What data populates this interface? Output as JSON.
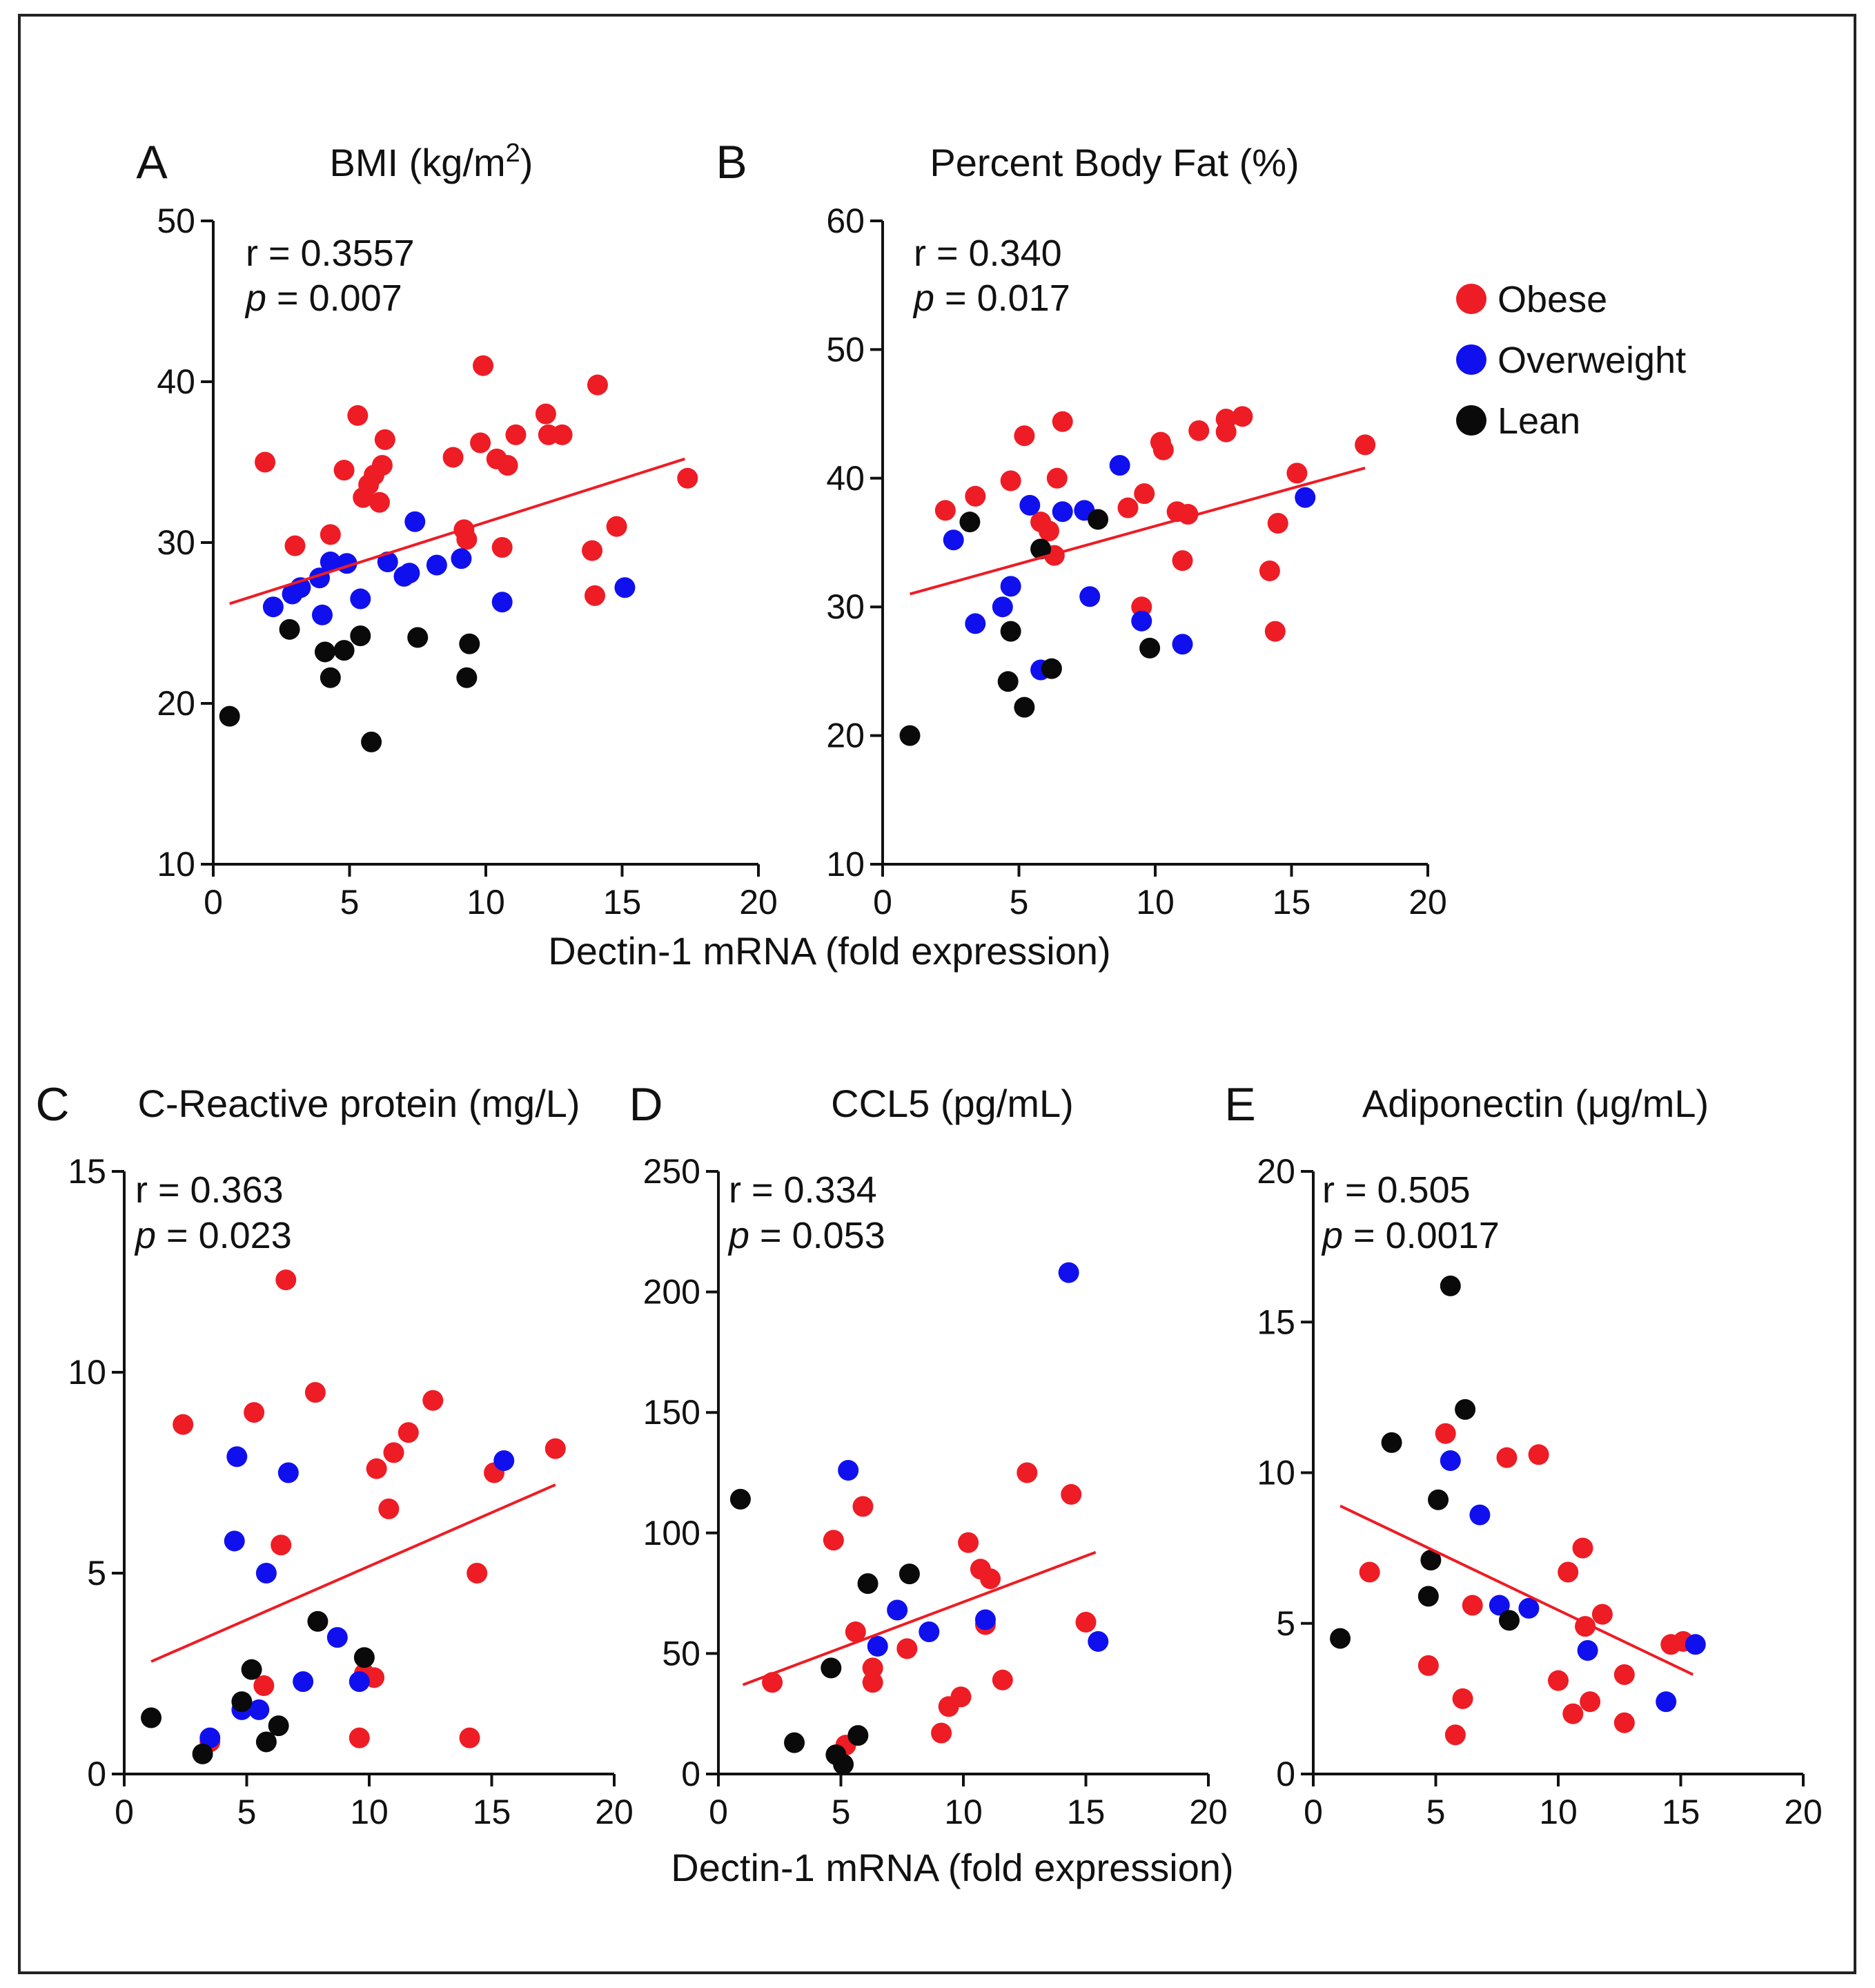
{
  "colors": {
    "Obese": "#ee1c24",
    "Overweight": "#1010ee",
    "Lean": "#0a0a0a",
    "fit": "#ee1c24",
    "axis": "#111111"
  },
  "legend": [
    {
      "name": "Obese",
      "label": "Obese"
    },
    {
      "name": "Overweight",
      "label": "Overweight"
    },
    {
      "name": "Lean",
      "label": "Lean"
    }
  ],
  "shared_xlabel_top": "Dectin-1 mRNA (fold expression)",
  "shared_xlabel_bottom": "Dectin-1 mRNA (fold expression)",
  "chart_data": [
    {
      "id": "A",
      "type": "scatter",
      "letter": "A",
      "title": "BMI (kg/m",
      "title_sup": "2",
      "title_tail": ")",
      "r_text": "r = 0.3557",
      "p_label": "p",
      "p_text": " = 0.007",
      "xlim": [
        0,
        20
      ],
      "ylim": [
        10,
        50
      ],
      "xticks": [
        0,
        5,
        10,
        15,
        20
      ],
      "yticks": [
        10,
        20,
        30,
        40,
        50
      ],
      "fit": [
        [
          0.6,
          26.2
        ],
        [
          17.3,
          35.2
        ]
      ],
      "series": [
        {
          "name": "Obese",
          "points": [
            [
              1.9,
              35
            ],
            [
              3,
              29.8
            ],
            [
              4.3,
              30.5
            ],
            [
              4.8,
              34.5
            ],
            [
              5.3,
              37.9
            ],
            [
              5.5,
              32.8
            ],
            [
              5.7,
              33.6
            ],
            [
              5.9,
              34.2
            ],
            [
              6.1,
              32.5
            ],
            [
              6.2,
              34.8
            ],
            [
              6.3,
              36.4
            ],
            [
              8.8,
              35.3
            ],
            [
              9.2,
              30.8
            ],
            [
              9.3,
              30.2
            ],
            [
              9.8,
              36.2
            ],
            [
              9.9,
              41
            ],
            [
              10.4,
              35.2
            ],
            [
              10.6,
              29.7
            ],
            [
              10.8,
              34.8
            ],
            [
              11.1,
              36.7
            ],
            [
              12.2,
              38
            ],
            [
              12.3,
              36.7
            ],
            [
              12.8,
              36.7
            ],
            [
              13.9,
              29.5
            ],
            [
              14,
              26.7
            ],
            [
              14.1,
              39.8
            ],
            [
              14.8,
              31
            ],
            [
              17.4,
              34
            ]
          ]
        },
        {
          "name": "Overweight",
          "points": [
            [
              2.2,
              26
            ],
            [
              2.9,
              26.8
            ],
            [
              3.2,
              27.2
            ],
            [
              3.9,
              27.8
            ],
            [
              4,
              25.5
            ],
            [
              4.3,
              28.8
            ],
            [
              4.9,
              28.7
            ],
            [
              5.4,
              26.5
            ],
            [
              6.4,
              28.8
            ],
            [
              7,
              27.9
            ],
            [
              7.2,
              28.1
            ],
            [
              7.4,
              31.3
            ],
            [
              8.2,
              28.6
            ],
            [
              9.1,
              29
            ],
            [
              10.6,
              26.3
            ],
            [
              15.1,
              27.2
            ]
          ]
        },
        {
          "name": "Lean",
          "points": [
            [
              0.6,
              19.2
            ],
            [
              2.8,
              24.6
            ],
            [
              4.1,
              23.2
            ],
            [
              4.3,
              21.6
            ],
            [
              4.8,
              23.3
            ],
            [
              5.4,
              24.2
            ],
            [
              5.8,
              17.6
            ],
            [
              7.5,
              24.1
            ],
            [
              9.3,
              21.6
            ],
            [
              9.4,
              23.7
            ]
          ]
        }
      ]
    },
    {
      "id": "B",
      "type": "scatter",
      "letter": "B",
      "title": "Percent Body Fat (%)",
      "r_text": "r = 0.340",
      "p_label": "p",
      "p_text": " = 0.017",
      "xlim": [
        0,
        20
      ],
      "ylim": [
        10,
        60
      ],
      "xticks": [
        0,
        5,
        10,
        15,
        20
      ],
      "yticks": [
        10,
        20,
        30,
        40,
        50,
        60
      ],
      "fit": [
        [
          1,
          31
        ],
        [
          17.7,
          40.8
        ]
      ],
      "series": [
        {
          "name": "Obese",
          "points": [
            [
              2.3,
              37.5
            ],
            [
              3.4,
              38.6
            ],
            [
              4.7,
              39.8
            ],
            [
              5.2,
              43.3
            ],
            [
              5.8,
              36.6
            ],
            [
              6.1,
              35.9
            ],
            [
              6.3,
              34
            ],
            [
              6.4,
              40
            ],
            [
              6.6,
              44.4
            ],
            [
              9,
              37.7
            ],
            [
              9.5,
              30
            ],
            [
              9.6,
              38.8
            ],
            [
              10.2,
              42.8
            ],
            [
              10.3,
              42.2
            ],
            [
              10.8,
              37.4
            ],
            [
              11,
              33.6
            ],
            [
              11.2,
              37.2
            ],
            [
              11.6,
              43.7
            ],
            [
              12.6,
              43.6
            ],
            [
              12.6,
              44.6
            ],
            [
              13.2,
              44.8
            ],
            [
              14.2,
              32.8
            ],
            [
              14.4,
              28.1
            ],
            [
              14.5,
              36.5
            ],
            [
              15.2,
              40.4
            ],
            [
              17.7,
              42.6
            ]
          ]
        },
        {
          "name": "Overweight",
          "points": [
            [
              2.6,
              35.2
            ],
            [
              3.4,
              28.7
            ],
            [
              4.4,
              30
            ],
            [
              4.7,
              31.6
            ],
            [
              5.4,
              37.9
            ],
            [
              5.8,
              25.1
            ],
            [
              6.6,
              37.4
            ],
            [
              7.4,
              37.5
            ],
            [
              7.6,
              30.8
            ],
            [
              8.7,
              41
            ],
            [
              9.5,
              28.9
            ],
            [
              11,
              27.1
            ],
            [
              15.5,
              38.5
            ]
          ]
        },
        {
          "name": "Lean",
          "points": [
            [
              1,
              20
            ],
            [
              3.2,
              36.6
            ],
            [
              4.7,
              28.1
            ],
            [
              4.6,
              24.2
            ],
            [
              5.2,
              22.2
            ],
            [
              5.8,
              34.5
            ],
            [
              6.2,
              25.2
            ],
            [
              7.9,
              36.8
            ],
            [
              9.8,
              26.8
            ]
          ]
        }
      ]
    },
    {
      "id": "C",
      "type": "scatter",
      "letter": "C",
      "title": "C-Reactive protein (mg/L)",
      "r_text": "r = 0.363",
      "p_label": "p",
      "p_text": " = 0.023",
      "xlim": [
        0,
        20
      ],
      "ylim": [
        0,
        15
      ],
      "xticks": [
        0,
        5,
        10,
        15,
        20
      ],
      "yticks": [
        0,
        5,
        10,
        15
      ],
      "fit": [
        [
          1.1,
          2.8
        ],
        [
          17.6,
          7.2
        ]
      ],
      "series": [
        {
          "name": "Obese",
          "points": [
            [
              2.4,
              8.7
            ],
            [
              3.5,
              0.8
            ],
            [
              5.3,
              9
            ],
            [
              5.7,
              2.2
            ],
            [
              6.4,
              5.7
            ],
            [
              6.6,
              12.3
            ],
            [
              7.8,
              9.5
            ],
            [
              9.6,
              0.9
            ],
            [
              9.8,
              2.5
            ],
            [
              10.2,
              2.4
            ],
            [
              10.3,
              7.6
            ],
            [
              10.8,
              6.6
            ],
            [
              11,
              8
            ],
            [
              11.6,
              8.5
            ],
            [
              12.6,
              9.3
            ],
            [
              14.1,
              0.9
            ],
            [
              14.4,
              5
            ],
            [
              15.1,
              7.5
            ],
            [
              17.6,
              8.1
            ]
          ]
        },
        {
          "name": "Overweight",
          "points": [
            [
              3.5,
              0.9
            ],
            [
              4.5,
              5.8
            ],
            [
              4.6,
              7.9
            ],
            [
              4.8,
              1.6
            ],
            [
              5.5,
              1.6
            ],
            [
              5.8,
              5
            ],
            [
              6.7,
              7.5
            ],
            [
              7.3,
              2.3
            ],
            [
              8.7,
              3.4
            ],
            [
              9.6,
              2.3
            ],
            [
              15.5,
              7.8
            ]
          ]
        },
        {
          "name": "Lean",
          "points": [
            [
              1.1,
              1.4
            ],
            [
              3.2,
              0.5
            ],
            [
              4.8,
              1.8
            ],
            [
              5.2,
              2.6
            ],
            [
              5.8,
              0.8
            ],
            [
              6.3,
              1.2
            ],
            [
              7.9,
              3.8
            ],
            [
              9.8,
              2.9
            ]
          ]
        }
      ]
    },
    {
      "id": "D",
      "type": "scatter",
      "letter": "D",
      "title": "CCL5 (pg/mL)",
      "r_text": "r = 0.334",
      "p_label": "p",
      "p_text": " = 0.053",
      "xlim": [
        0,
        20
      ],
      "ylim": [
        0,
        250
      ],
      "xticks": [
        0,
        5,
        10,
        15,
        20
      ],
      "yticks": [
        0,
        50,
        100,
        150,
        200,
        250
      ],
      "fit": [
        [
          1,
          37
        ],
        [
          15.4,
          92
        ]
      ],
      "series": [
        {
          "name": "Obese",
          "points": [
            [
              2.2,
              38
            ],
            [
              4.7,
              97
            ],
            [
              5.2,
              12
            ],
            [
              5.6,
              59
            ],
            [
              5.9,
              111
            ],
            [
              6.3,
              44
            ],
            [
              6.3,
              38
            ],
            [
              7.7,
              52
            ],
            [
              9.1,
              17
            ],
            [
              9.4,
              28
            ],
            [
              9.9,
              32
            ],
            [
              10.2,
              96
            ],
            [
              10.7,
              85
            ],
            [
              10.9,
              62
            ],
            [
              11.1,
              81
            ],
            [
              11.6,
              39
            ],
            [
              12.6,
              125
            ],
            [
              14.4,
              116
            ],
            [
              15,
              63
            ]
          ]
        },
        {
          "name": "Overweight",
          "points": [
            [
              5.3,
              126
            ],
            [
              6.5,
              53
            ],
            [
              7.3,
              68
            ],
            [
              8.6,
              59
            ],
            [
              10.9,
              64
            ],
            [
              14.3,
              208
            ],
            [
              15.5,
              55
            ]
          ]
        },
        {
          "name": "Lean",
          "points": [
            [
              0.9,
              114
            ],
            [
              3.1,
              13
            ],
            [
              4.6,
              44
            ],
            [
              4.8,
              8
            ],
            [
              5.1,
              4
            ],
            [
              5.7,
              16
            ],
            [
              6.1,
              79
            ],
            [
              7.8,
              83
            ]
          ]
        }
      ]
    },
    {
      "id": "E",
      "type": "scatter",
      "letter": "E",
      "title": "Adiponectin (μg/mL)",
      "r_text": "r = 0.505",
      "p_label": "p",
      "p_text": " = 0.0017",
      "xlim": [
        0,
        20
      ],
      "ylim": [
        0,
        20
      ],
      "xticks": [
        0,
        5,
        10,
        15,
        20
      ],
      "yticks": [
        0,
        5,
        10,
        15,
        20
      ],
      "fit": [
        [
          1.1,
          8.9
        ],
        [
          15.5,
          3.3
        ]
      ],
      "series": [
        {
          "name": "Obese",
          "points": [
            [
              2.3,
              6.7
            ],
            [
              4.7,
              3.6
            ],
            [
              5.4,
              11.3
            ],
            [
              5.8,
              1.3
            ],
            [
              6.1,
              2.5
            ],
            [
              6.5,
              5.6
            ],
            [
              7.9,
              10.5
            ],
            [
              9.2,
              10.6
            ],
            [
              10,
              3.1
            ],
            [
              10.4,
              6.7
            ],
            [
              10.6,
              2
            ],
            [
              11,
              7.5
            ],
            [
              11.1,
              4.9
            ],
            [
              11.3,
              2.4
            ],
            [
              11.8,
              5.3
            ],
            [
              12.7,
              1.7
            ],
            [
              12.7,
              3.3
            ],
            [
              14.6,
              4.3
            ],
            [
              15.1,
              4.4
            ]
          ]
        },
        {
          "name": "Overweight",
          "points": [
            [
              5.6,
              10.4
            ],
            [
              6.8,
              8.6
            ],
            [
              7.6,
              5.6
            ],
            [
              8.8,
              5.5
            ],
            [
              11.2,
              4.1
            ],
            [
              14.4,
              2.4
            ],
            [
              15.6,
              4.3
            ]
          ]
        },
        {
          "name": "Lean",
          "points": [
            [
              1.1,
              4.5
            ],
            [
              3.2,
              11
            ],
            [
              4.7,
              5.9
            ],
            [
              4.8,
              7.1
            ],
            [
              5.1,
              9.1
            ],
            [
              5.6,
              16.2
            ],
            [
              6.2,
              12.1
            ],
            [
              8,
              5.1
            ]
          ]
        }
      ]
    }
  ]
}
